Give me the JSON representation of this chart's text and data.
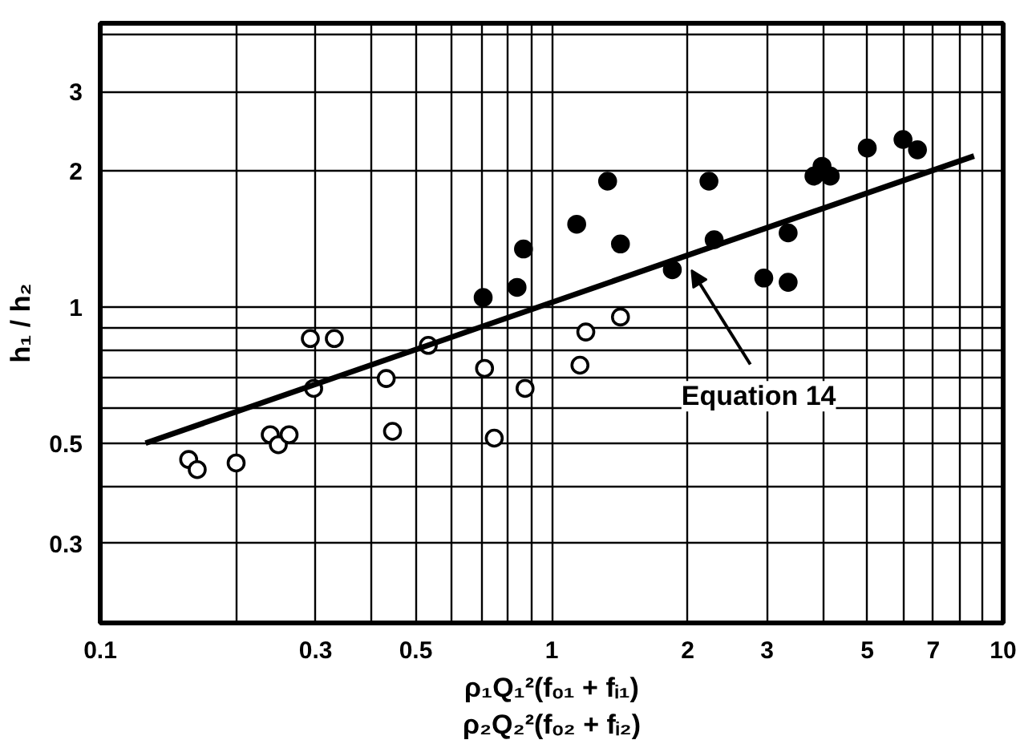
{
  "chart_data": {
    "type": "scatter",
    "xlabel": "ρ₁Q₁²(fₒ₁ + fᵢ₁)\nρ₂Q₂²(fₒ₂ + fᵢ₂)",
    "ylabel": "h₁ / h₂",
    "xlim": [
      0.1,
      10
    ],
    "ylim": [
      0.2,
      4.25
    ],
    "log": "xy",
    "grid": true,
    "xticks": [
      0.1,
      {
        "value": 0.2,
        "label": null
      },
      0.3,
      {
        "value": 0.4,
        "label": null
      },
      0.5,
      {
        "value": 0.6,
        "label": null
      },
      {
        "value": 0.7,
        "label": null
      },
      {
        "value": 0.8,
        "label": null
      },
      {
        "value": 0.9,
        "label": null
      },
      1,
      2,
      3,
      {
        "value": 4,
        "label": null
      },
      5,
      {
        "value": 6,
        "label": null
      },
      7,
      {
        "value": 8,
        "label": null
      },
      {
        "value": 9,
        "label": null
      },
      10
    ],
    "yticks": [
      {
        "value": 0.2,
        "label": null
      },
      0.3,
      {
        "value": 0.4,
        "label": null
      },
      0.5,
      {
        "value": 0.6,
        "label": null
      },
      {
        "value": 0.7,
        "label": null
      },
      {
        "value": 0.8,
        "label": null
      },
      {
        "value": 0.9,
        "label": null
      },
      1,
      2,
      3,
      {
        "value": 4,
        "label": null
      }
    ],
    "annotations": [
      {
        "text": "Equation 14",
        "x": 2.04,
        "y": 1.245
      }
    ],
    "series": [
      {
        "marker": "circle",
        "color": "#ffffff",
        "x": [
          0.157,
          0.164,
          0.2,
          0.238,
          0.248,
          0.262,
          0.292,
          0.33,
          0.297,
          0.43,
          0.444,
          0.533,
          0.71,
          0.746,
          0.873,
          1.155,
          1.19,
          1.42
        ],
        "values": [
          0.46,
          0.437,
          0.452,
          0.522,
          0.496,
          0.522,
          0.852,
          0.852,
          0.661,
          0.695,
          0.531,
          0.823,
          0.732,
          0.513,
          0.661,
          0.744,
          0.881,
          0.951
        ]
      },
      {
        "marker": "circle",
        "color": "#000000",
        "x": [
          0.705,
          0.838,
          0.866,
          1.136,
          1.33,
          1.42,
          1.85,
          2.23,
          2.29,
          2.95,
          3.34,
          3.34,
          3.81,
          3.97,
          4.14,
          5.0,
          6.0,
          6.46
        ],
        "values": [
          1.05,
          1.106,
          1.345,
          1.526,
          1.9,
          1.38,
          1.21,
          1.9,
          1.41,
          1.16,
          1.135,
          1.46,
          1.95,
          2.05,
          1.95,
          2.25,
          2.35,
          2.23
        ]
      },
      {
        "type": "line",
        "color": "#000000",
        "x": [
          0.126,
          8.62
        ],
        "values": [
          0.5,
          2.16
        ]
      }
    ]
  }
}
